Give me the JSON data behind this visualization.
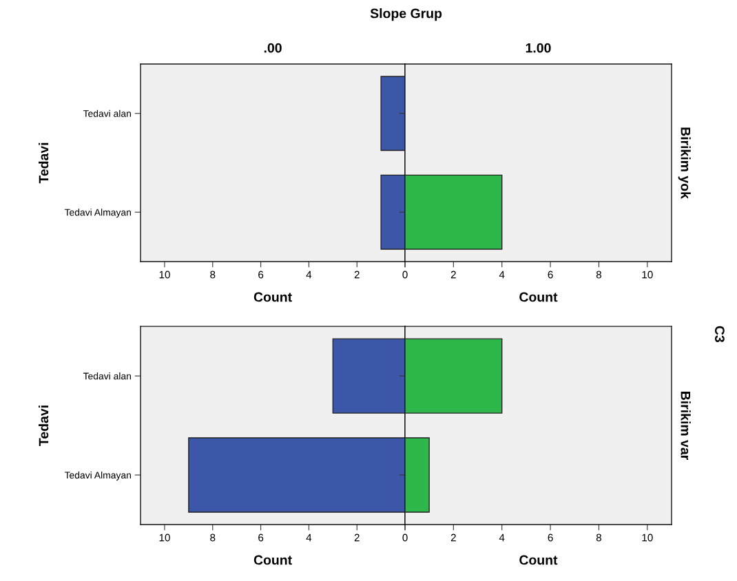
{
  "chart_data": [
    {
      "type": "bar",
      "orientation": "horizontal",
      "title": ".00",
      "ylabel": "Tedavi",
      "xlabel": "Count",
      "annotations": [
        "Slope Grup",
        "C3"
      ],
      "categories": [
        "Tedavi alan",
        "Tedavi Almayan"
      ],
      "values": [
        1,
        1
      ],
      "color": "#3c56a8",
      "xlim": [
        11,
        0
      ],
      "xticks": [
        10,
        8,
        6,
        4,
        2,
        0
      ]
    },
    {
      "type": "bar",
      "orientation": "horizontal",
      "title": "1.00",
      "y2label": "Birikim yok",
      "xlabel": "Count",
      "categories": [
        null,
        null
      ],
      "values": [
        0,
        4
      ],
      "color": "#2eb84b",
      "xlim": [
        0,
        11
      ],
      "xticks": [
        {
          "value": 0,
          "label": null
        },
        2,
        4,
        6,
        8,
        10
      ]
    },
    {
      "type": "bar",
      "orientation": "horizontal",
      "ylabel": "Tedavi",
      "xlabel": "Count",
      "categories": [
        "Tedavi alan",
        "Tedavi Almayan"
      ],
      "values": [
        3,
        9
      ],
      "color": "#3c56a8",
      "xlim": [
        11,
        0
      ],
      "xticks": [
        10,
        8,
        6,
        4,
        2,
        0
      ]
    },
    {
      "type": "bar",
      "orientation": "horizontal",
      "y2label": "Birikim var",
      "xlabel": "Count",
      "categories": [
        null,
        null
      ],
      "values": [
        4,
        1
      ],
      "color": "#2eb84b",
      "xlim": [
        0,
        11
      ],
      "xticks": [
        {
          "value": 0,
          "label": null
        },
        2,
        4,
        6,
        8,
        10
      ]
    }
  ]
}
